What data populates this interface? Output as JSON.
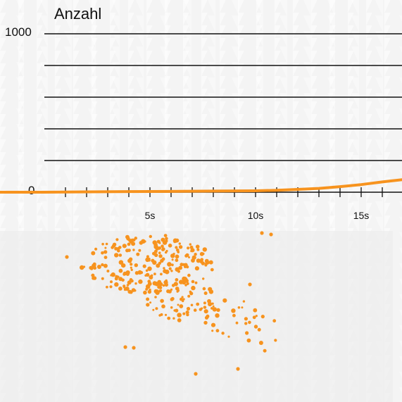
{
  "chart_data": {
    "type": "line",
    "title": "Anzahl",
    "ylim": [
      0,
      1000
    ],
    "y_tick_labels": [
      "1000",
      "0"
    ],
    "y_gridlines": [
      200,
      400,
      600,
      800,
      1000
    ],
    "x_tick_labels": [
      {
        "x": 5,
        "label": "5s"
      },
      {
        "x": 10,
        "label": "10s"
      },
      {
        "x": 15,
        "label": "15s"
      }
    ],
    "xlim": [
      0,
      17
    ],
    "series": [
      {
        "x": [
          0,
          2,
          4,
          6,
          8,
          10,
          11,
          12,
          13,
          14,
          15,
          16,
          17
        ],
        "values": [
          0,
          2,
          4,
          5,
          7,
          9,
          12,
          18,
          24,
          35,
          48,
          65,
          80
        ]
      }
    ]
  },
  "colors": {
    "line": "#f7931e",
    "particles": "#f7931e",
    "grid": "#111111",
    "background": "#f4f4f4"
  }
}
